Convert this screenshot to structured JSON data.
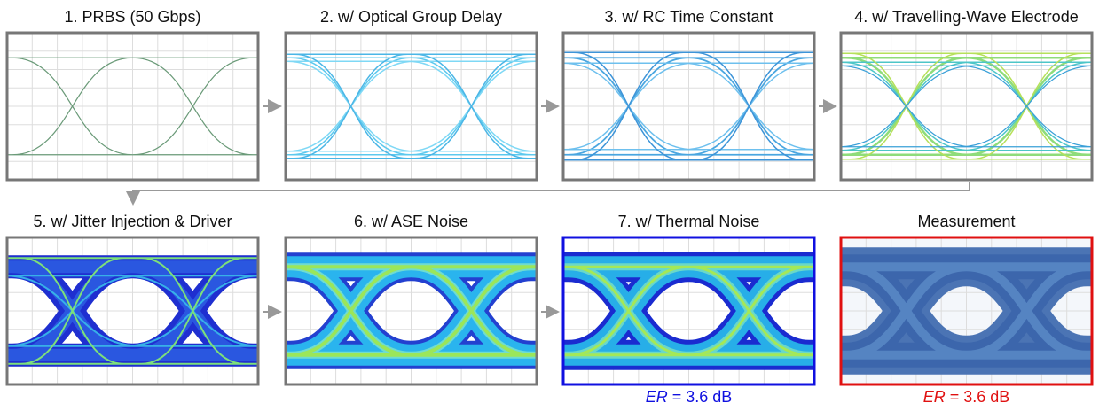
{
  "panels": [
    {
      "title": "1. PRBS (50 Gbps)"
    },
    {
      "title": "2. w/ Optical Group Delay"
    },
    {
      "title": "3. w/ RC Time Constant"
    },
    {
      "title": "4. w/ Travelling-Wave Electrode"
    },
    {
      "title": "5. w/ Jitter Injection & Driver"
    },
    {
      "title": "6. w/ ASE Noise"
    },
    {
      "title": "7. w/ Thermal Noise",
      "note": {
        "symbol": "ER",
        "text": "= 3.6 dB"
      }
    },
    {
      "title": "Measurement",
      "note": {
        "symbol": "ER",
        "text": "= 3.6 dB"
      }
    }
  ]
}
